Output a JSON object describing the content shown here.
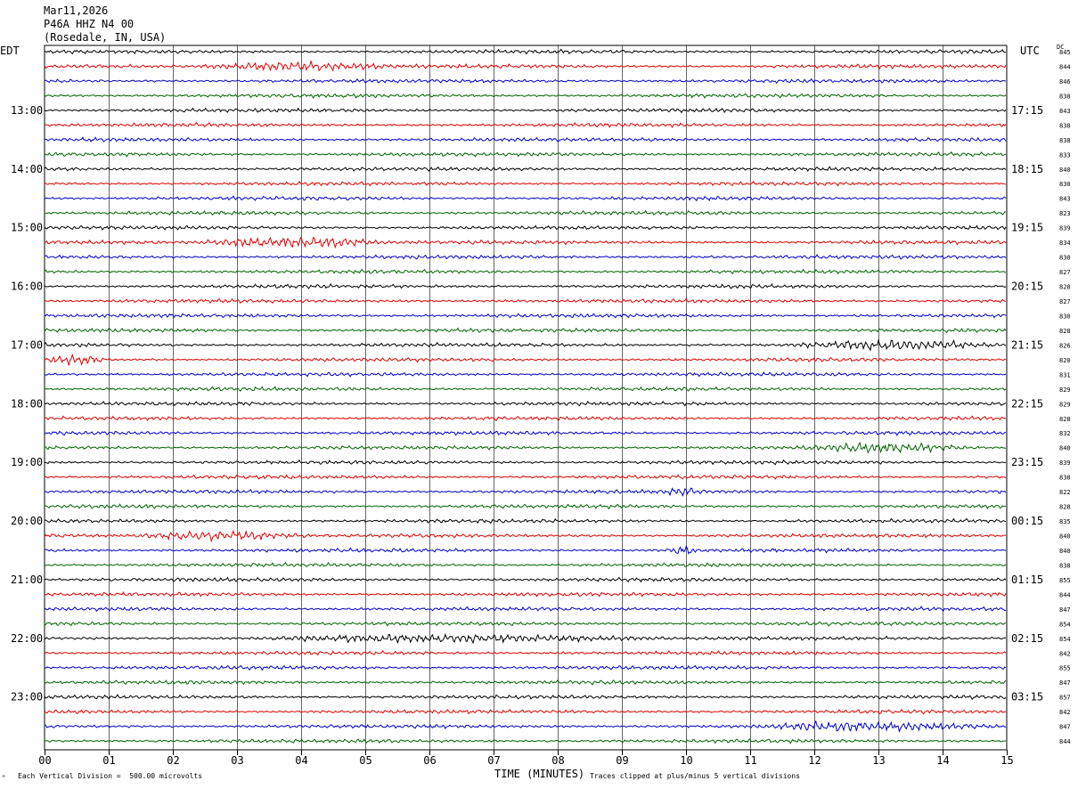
{
  "header": {
    "date": "Mar11,2026",
    "station": "P46A HHZ N4 00",
    "location": "(Rosedale, IN, USA)"
  },
  "labels": {
    "left_zone": "EDT",
    "right_zone": "UTC",
    "dc": "DC",
    "footer_mark": "^",
    "footer_division": "Each Vertical Division =  500.00 microvolts",
    "footer_clip": "Traces clipped at plus/minus 5 vertical divisions"
  },
  "chart_data": {
    "type": "line",
    "title": "",
    "xlabel": "TIME (MINUTES)",
    "ylabel": "",
    "xlim": [
      0,
      15
    ],
    "x_ticks": [
      "00",
      "01",
      "02",
      "03",
      "04",
      "05",
      "06",
      "07",
      "08",
      "09",
      "10",
      "11",
      "12",
      "13",
      "14",
      "15"
    ],
    "grid": true,
    "trace_colors": [
      "#000000",
      "#e00000",
      "#0000cc",
      "#006400"
    ],
    "left_hour_labels": [
      "13:00",
      "14:00",
      "15:00",
      "16:00",
      "17:00",
      "18:00",
      "19:00",
      "20:00",
      "21:00",
      "22:00",
      "23:00"
    ],
    "right_hour_labels": [
      "17:15",
      "18:15",
      "19:15",
      "20:15",
      "21:15",
      "22:15",
      "23:15",
      "00:15",
      "01:15",
      "02:15",
      "03:15"
    ],
    "dc_values": [
      "845",
      "844",
      "846",
      "838",
      "843",
      "838",
      "838",
      "833",
      "840",
      "830",
      "843",
      "823",
      "839",
      "834",
      "830",
      "827",
      "828",
      "827",
      "830",
      "828",
      "826",
      "820",
      "831",
      "829",
      "829",
      "828",
      "832",
      "840",
      "839",
      "838",
      "822",
      "828",
      "835",
      "840",
      "840",
      "838",
      "855",
      "844",
      "847",
      "854",
      "854",
      "842",
      "855",
      "847",
      "857",
      "842",
      "847",
      "844"
    ],
    "events": [
      {
        "trace": 1,
        "start_min": 2.3,
        "end_min": 5.5,
        "amp": 2.0
      },
      {
        "trace": 13,
        "start_min": 2.3,
        "end_min": 5.5,
        "amp": 2.6
      },
      {
        "trace": 20,
        "start_min": 11.5,
        "end_min": 15,
        "amp": 2.0
      },
      {
        "trace": 21,
        "start_min": 0,
        "end_min": 1.0,
        "amp": 2.6
      },
      {
        "trace": 27,
        "start_min": 11.8,
        "end_min": 14.5,
        "amp": 1.8
      },
      {
        "trace": 30,
        "start_min": 9.6,
        "end_min": 10.3,
        "amp": 1.8
      },
      {
        "trace": 33,
        "start_min": 1.3,
        "end_min": 4.2,
        "amp": 2.2
      },
      {
        "trace": 34,
        "start_min": 9.7,
        "end_min": 10.2,
        "amp": 2.4
      },
      {
        "trace": 40,
        "start_min": 3.3,
        "end_min": 10.0,
        "amp": 1.6
      },
      {
        "trace": 46,
        "start_min": 11.0,
        "end_min": 15,
        "amp": 1.8
      }
    ]
  }
}
